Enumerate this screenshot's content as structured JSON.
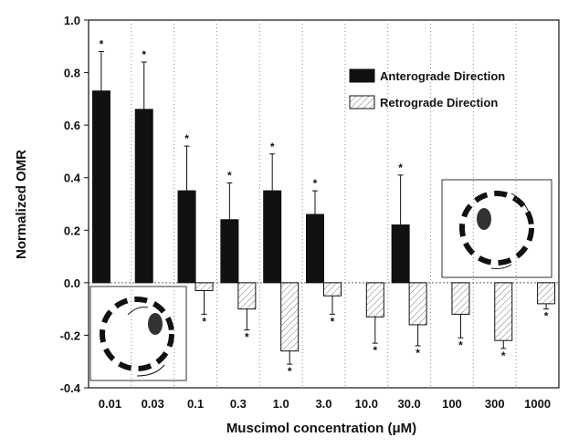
{
  "chart_data": {
    "type": "bar",
    "x_label": "Muscimol concentration (μM)",
    "y_label": "Normalized OMR",
    "categories": [
      "0.01",
      "0.03",
      "0.1",
      "0.3",
      "1.0",
      "3.0",
      "10.0",
      "30.0",
      "100",
      "300",
      "1000"
    ],
    "series": [
      {
        "name": "Anterograde Direction",
        "color": "#111111",
        "hatch": false,
        "values": [
          0.73,
          0.66,
          0.35,
          0.24,
          0.35,
          0.26,
          null,
          0.22,
          null,
          null,
          null
        ],
        "errors": [
          0.15,
          0.18,
          0.17,
          0.14,
          0.14,
          0.09,
          null,
          0.19,
          null,
          null,
          null
        ],
        "annotations": [
          "*",
          "*",
          "*",
          "*",
          "*",
          "*",
          null,
          "*",
          null,
          null,
          null
        ]
      },
      {
        "name": "Retrograde Direction",
        "color": "#ffffff",
        "hatch": true,
        "values": [
          null,
          null,
          -0.03,
          -0.1,
          -0.26,
          -0.05,
          -0.13,
          -0.16,
          -0.12,
          -0.22,
          -0.08
        ],
        "errors": [
          null,
          null,
          0.09,
          0.08,
          0.05,
          0.07,
          0.1,
          0.08,
          0.09,
          0.03,
          0.02
        ],
        "annotations": [
          null,
          null,
          "*",
          "*",
          "*",
          "*",
          "*",
          "*",
          "*",
          "*",
          "*"
        ]
      }
    ],
    "ylim": [
      -0.4,
      1.0
    ],
    "yticks": [
      {
        "value": -0.4,
        "label": "-0.4"
      },
      {
        "value": -0.2,
        "label": "-0.2"
      },
      {
        "value": 0,
        "label": "0.0"
      },
      {
        "value": 0.2,
        "label": "0.2"
      },
      {
        "value": 0.4,
        "label": "0.4"
      },
      {
        "value": 0.6,
        "label": "0.6"
      },
      {
        "value": 0.8,
        "label": "0.8"
      },
      {
        "value": 1.0,
        "label": "1.0"
      }
    ],
    "grid": true,
    "legend": "upper right"
  }
}
